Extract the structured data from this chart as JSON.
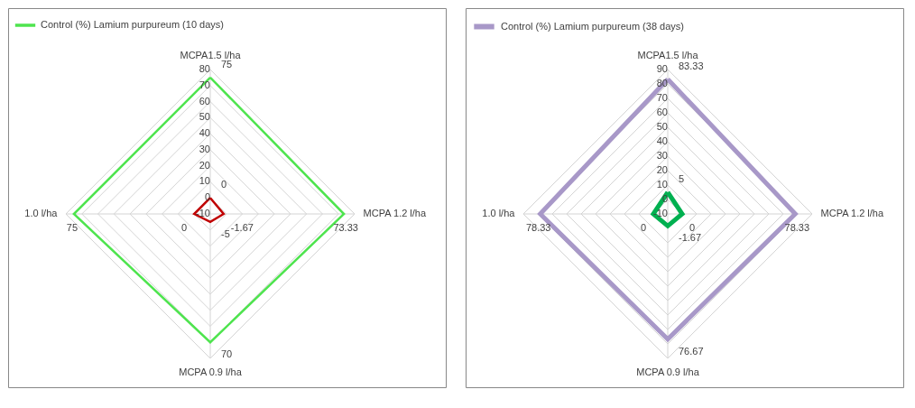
{
  "chart_data": [
    {
      "type": "radar",
      "categories": [
        "MCPA1.5 l/ha",
        "MCPA  1.2 l/ha",
        "MCPA 0.9 l/ha",
        "1.0 l/ha"
      ],
      "ylim": [
        -10,
        80
      ],
      "yticks": [
        -10,
        0,
        10,
        20,
        30,
        40,
        50,
        60,
        70,
        80
      ],
      "grid": true,
      "legend": "top left",
      "data_labels": true,
      "series": [
        {
          "name": "Control (%) Lamium purpureum (10 days)",
          "color": "#4ee44e",
          "values": [
            75,
            73.33,
            70,
            75
          ]
        },
        {
          "color": "#c00000",
          "values": [
            0,
            -1.67,
            -5,
            0
          ]
        }
      ]
    },
    {
      "type": "radar",
      "categories": [
        "MCPA1.5 l/ha",
        "MCPA  1.2 l/ha",
        "MCPA 0.9 l/ha",
        "1.0 l/ha"
      ],
      "ylim": [
        -10,
        90
      ],
      "yticks": [
        -10,
        0,
        10,
        20,
        30,
        40,
        50,
        60,
        70,
        80,
        90
      ],
      "grid": true,
      "legend": "top left",
      "data_labels": true,
      "series": [
        {
          "name": "Control (%) Lamium purpureum (38 days)",
          "color": "#a898c8",
          "values": [
            83.33,
            78.33,
            76.67,
            78.33
          ]
        },
        {
          "color": "#00b050",
          "values": [
            5,
            0,
            -1.67,
            0
          ]
        }
      ]
    }
  ]
}
